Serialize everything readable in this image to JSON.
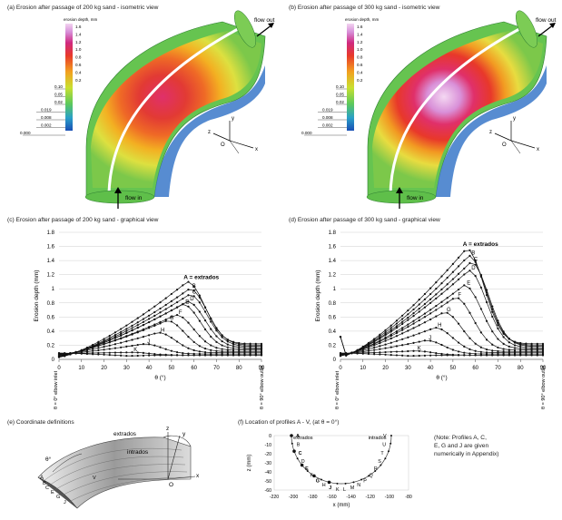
{
  "panel_a": {
    "caption": "(a) Erosion after passage of 200 kg sand - isometric view",
    "legend_title": "erosion depth, mm",
    "legend_top_ticks": [
      "1.6",
      "1.4",
      "1.2",
      "1.0",
      "0.8",
      "0.6",
      "0.4",
      "0.2"
    ],
    "legend_bottom_ticks": [
      "0.10",
      "0.05",
      "0.02",
      "0.019",
      "0.008",
      "0.002",
      "0.000"
    ],
    "flow_out": "flow out",
    "flow_in": "flow in",
    "axes": {
      "z": "z",
      "y": "y",
      "x": "x",
      "o": "O"
    }
  },
  "panel_b": {
    "caption": "(b) Erosion after passage of 300 kg sand - isometric view",
    "legend_title": "erosion depth, mm",
    "legend_top_ticks": [
      "1.6",
      "1.4",
      "1.2",
      "1.0",
      "0.8",
      "0.6",
      "0.4",
      "0.2"
    ],
    "legend_bottom_ticks": [
      "0.10",
      "0.05",
      "0.02",
      "0.019",
      "0.008",
      "0.002",
      "0.000"
    ],
    "flow_out": "flow out",
    "flow_in": "flow in",
    "axes": {
      "z": "z",
      "y": "y",
      "x": "x",
      "o": "O"
    }
  },
  "panel_c": {
    "caption": "(c) Erosion after passage of 200 kg sand - graphical view"
  },
  "panel_d": {
    "caption": "(d) Erosion after passage of 300 kg sand - graphical view"
  },
  "panel_e": {
    "caption": "(e) Coordinate definitions",
    "labels": {
      "extrados": "extrados",
      "intrados": "intrados",
      "theta": "θ°",
      "o": "O",
      "x": "x",
      "y": "y",
      "z": "z",
      "a": "A",
      "b": "B",
      "c": "C",
      "e": "E",
      "g": "G",
      "j": "J",
      "v": "V"
    }
  },
  "panel_f": {
    "caption": "(f) Location of profiles A - V, (at θ = 0°)",
    "xlabel": "x (mm)",
    "ylabel": "z (mm)",
    "extrados": "extrados",
    "intrados": "intrados",
    "x_ticks": [
      "-220",
      "-200",
      "-180",
      "-160",
      "-140",
      "-120",
      "-100",
      "-80"
    ],
    "y_ticks": [
      "0",
      "-10",
      "-20",
      "-30",
      "-40",
      "-50",
      "-60"
    ],
    "note": [
      "(Note: Profiles A, C,",
      "E, G and J are given",
      "numerically in Appendix)"
    ],
    "profile_labels": [
      "A",
      "B",
      "C",
      "D",
      "E",
      "F",
      "G",
      "H",
      "J",
      "K",
      "L",
      "M",
      "N",
      "P",
      "Q",
      "R",
      "S",
      "T",
      "U",
      "V"
    ]
  },
  "chart_data": [
    {
      "type": "line",
      "title": "(c) Erosion after passage of 200 kg sand - graphical view",
      "xlabel": "θ (°)",
      "ylabel": "Erosion depth (mm)",
      "xlim": [
        0,
        90
      ],
      "ylim": [
        0,
        1.8
      ],
      "x_ticks": [
        "0",
        "10",
        "20",
        "30",
        "40",
        "50",
        "60",
        "70",
        "80",
        "90"
      ],
      "y_ticks": [
        "0",
        "0.2",
        "0.4",
        "0.6",
        "0.8",
        "1",
        "1.2",
        "1.4",
        "1.6",
        "1.8"
      ],
      "x_end_labels": {
        "start": "θ = 0° elbow inlet",
        "end": "θ = 90° elbow outlet"
      },
      "peak_label": "A = extrados",
      "series": [
        {
          "name": "A = extrados",
          "peak": 1.1,
          "peak_x": 57
        },
        {
          "name": "B",
          "peak": 1.0,
          "peak_x": 58
        },
        {
          "name": "C",
          "peak": 0.92,
          "peak_x": 58
        },
        {
          "name": "D",
          "peak": 0.82,
          "peak_x": 57
        },
        {
          "name": "E",
          "peak": 0.78,
          "peak_x": 55
        },
        {
          "name": "F",
          "peak": 0.63,
          "peak_x": 52
        },
        {
          "name": "G",
          "peak": 0.55,
          "peak_x": 48
        },
        {
          "name": "H",
          "peak": 0.38,
          "peak_x": 44
        },
        {
          "name": "J",
          "peak": 0.22,
          "peak_x": 38
        },
        {
          "name": "K",
          "peak": 0.1,
          "peak_x": 32
        },
        {
          "name": "",
          "peak": 0.05,
          "peak_x": 30
        }
      ]
    },
    {
      "type": "line",
      "title": "(d) Erosion after passage of 300 kg sand - graphical view",
      "xlabel": "θ (°)",
      "ylabel": "Erosion depth (mm)",
      "xlim": [
        0,
        90
      ],
      "ylim": [
        0,
        1.8
      ],
      "x_ticks": [
        "0",
        "10",
        "20",
        "30",
        "40",
        "50",
        "60",
        "70",
        "80",
        "90"
      ],
      "y_ticks": [
        "0",
        "0.2",
        "0.4",
        "0.6",
        "0.8",
        "1",
        "1.2",
        "1.4",
        "1.6",
        "1.8"
      ],
      "x_end_labels": {
        "start": "θ = 0° elbow inlet",
        "end": "θ = 90° elbow outlet"
      },
      "peak_label": "A = extrados",
      "series": [
        {
          "name": "A = extrados",
          "peak": 1.57,
          "peak_x": 56
        },
        {
          "name": "B",
          "peak": 1.47,
          "peak_x": 57
        },
        {
          "name": "C",
          "peak": 1.38,
          "peak_x": 58
        },
        {
          "name": "D",
          "peak": 1.26,
          "peak_x": 57
        },
        {
          "name": "E",
          "peak": 1.05,
          "peak_x": 55
        },
        {
          "name": "F",
          "peak": 0.88,
          "peak_x": 51
        },
        {
          "name": "G",
          "peak": 0.67,
          "peak_x": 46
        },
        {
          "name": "H",
          "peak": 0.45,
          "peak_x": 42
        },
        {
          "name": "J",
          "peak": 0.27,
          "peak_x": 38
        },
        {
          "name": "K",
          "peak": 0.12,
          "peak_x": 33
        },
        {
          "name": "",
          "peak": 0.05,
          "peak_x": 30
        }
      ]
    }
  ]
}
